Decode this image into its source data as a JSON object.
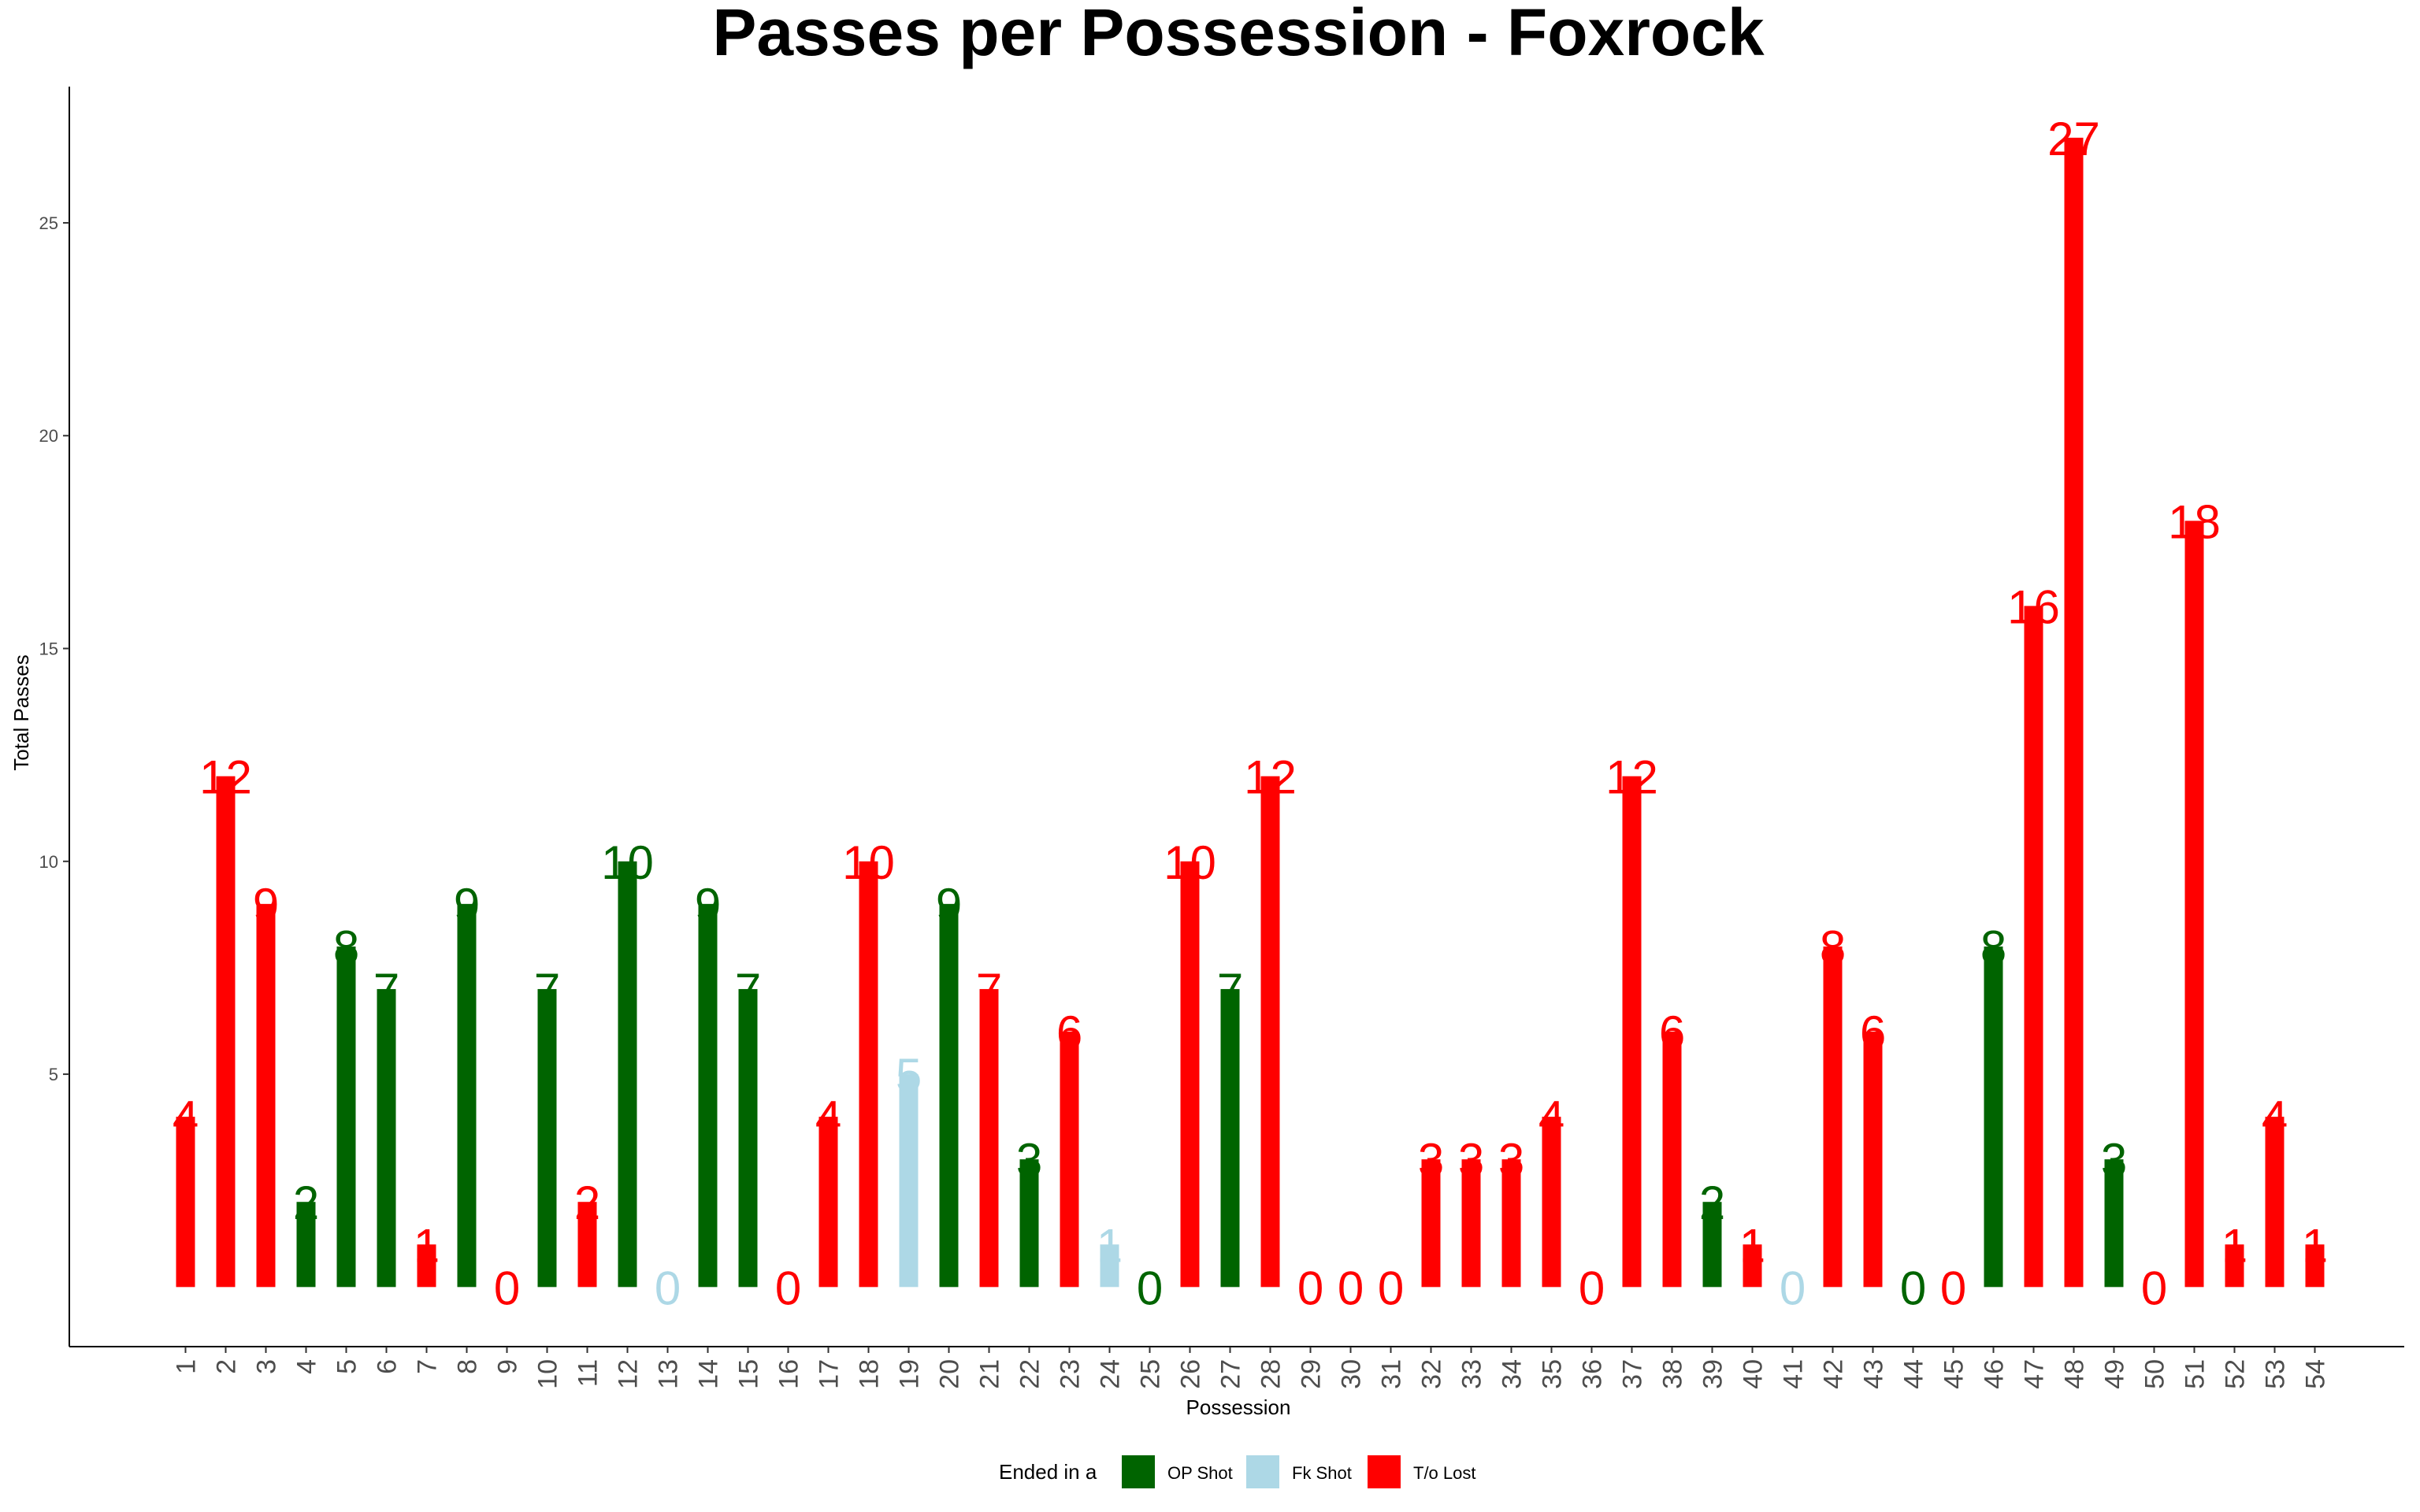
{
  "chart_data": {
    "type": "bar",
    "title": "Passes per Possession - Foxrock",
    "xlabel": "Possession",
    "ylabel": "Total Passes",
    "ylim": [
      -1.4,
      28.2
    ],
    "yticks": [
      5,
      10,
      15,
      20,
      25
    ],
    "grid": false,
    "legend": {
      "title": "Ended in a",
      "position": "bottom",
      "entries": [
        {
          "key": "op",
          "label": "OP Shot",
          "color": "#006400"
        },
        {
          "key": "fk",
          "label": "Fk Shot",
          "color": "#ADD8E6"
        },
        {
          "key": "to",
          "label": "T/o Lost",
          "color": "#FF0000"
        }
      ]
    },
    "categories": [
      "1",
      "2",
      "3",
      "4",
      "5",
      "6",
      "7",
      "8",
      "9",
      "10",
      "11",
      "12",
      "13",
      "14",
      "15",
      "16",
      "17",
      "18",
      "19",
      "20",
      "21",
      "22",
      "23",
      "24",
      "25",
      "26",
      "27",
      "28",
      "29",
      "30",
      "31",
      "32",
      "33",
      "34",
      "35",
      "36",
      "37",
      "38",
      "39",
      "40",
      "41",
      "42",
      "43",
      "44",
      "45",
      "46",
      "47",
      "48",
      "49",
      "50",
      "51",
      "52",
      "53",
      "54"
    ],
    "values": [
      4,
      12,
      9,
      2,
      8,
      7,
      1,
      9,
      0,
      7,
      2,
      10,
      0,
      9,
      7,
      0,
      4,
      10,
      5,
      9,
      7,
      3,
      6,
      1,
      0,
      10,
      7,
      12,
      0,
      0,
      0,
      3,
      3,
      3,
      4,
      0,
      12,
      6,
      2,
      1,
      0,
      8,
      6,
      0,
      0,
      8,
      16,
      27,
      3,
      0,
      18,
      1,
      4,
      1
    ],
    "outcome": [
      "to",
      "to",
      "to",
      "op",
      "op",
      "op",
      "to",
      "op",
      "to",
      "op",
      "to",
      "op",
      "fk",
      "op",
      "op",
      "to",
      "to",
      "to",
      "fk",
      "op",
      "to",
      "op",
      "to",
      "fk",
      "op",
      "to",
      "op",
      "to",
      "to",
      "to",
      "to",
      "to",
      "to",
      "to",
      "to",
      "to",
      "to",
      "to",
      "op",
      "to",
      "fk",
      "to",
      "to",
      "op",
      "to",
      "op",
      "to",
      "to",
      "op",
      "to",
      "to",
      "to",
      "to",
      "to"
    ]
  }
}
